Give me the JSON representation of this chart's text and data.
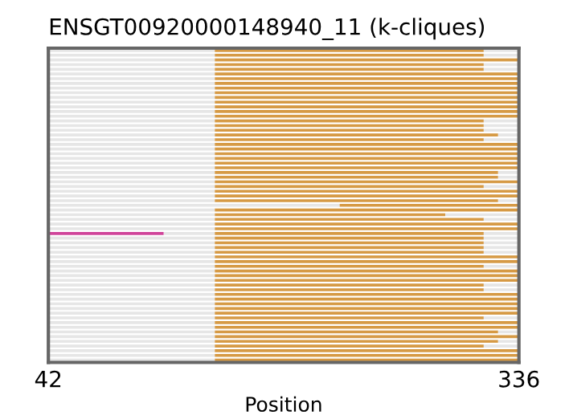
{
  "chart_data": {
    "type": "bar",
    "orientation": "horizontal",
    "title": "ENSGT00920000148940_11 (k-cliques)",
    "xlabel": "Position",
    "categories": [
      null,
      null,
      null,
      null,
      null,
      null,
      null,
      null,
      null,
      null,
      null,
      null,
      null,
      null,
      null,
      null,
      null,
      null,
      null,
      null,
      null,
      null,
      null,
      null,
      null,
      null,
      null,
      null,
      null,
      null,
      null,
      null,
      null,
      null,
      null,
      null,
      null,
      null,
      null,
      null,
      null,
      null,
      null,
      null,
      null,
      null,
      null,
      null,
      null,
      null,
      null,
      null,
      null,
      null,
      null,
      null,
      null,
      null,
      null,
      null,
      null,
      null,
      null,
      null,
      null,
      null,
      null
    ],
    "xlim": [
      42,
      336
    ],
    "xticks": [
      42,
      336
    ],
    "tick_labels": "x",
    "grid": false,
    "legend": false,
    "series": [
      {
        "color": "#e6e6e6",
        "base": [
          42,
          42,
          42,
          42,
          42,
          42,
          42,
          42,
          42,
          42,
          42,
          42,
          42,
          42,
          42,
          42,
          42,
          42,
          42,
          42,
          42,
          42,
          42,
          42,
          42,
          42,
          42,
          42,
          42,
          42,
          42,
          42,
          42,
          42,
          42,
          42,
          42,
          42,
          42,
          114,
          42,
          42,
          42,
          42,
          42,
          42,
          42,
          42,
          42,
          42,
          42,
          42,
          42,
          42,
          42,
          42,
          42,
          42,
          42,
          42,
          42,
          42,
          42,
          42,
          42,
          42,
          42
        ],
        "values": [
          104,
          104,
          104,
          104,
          104,
          104,
          104,
          104,
          104,
          104,
          104,
          104,
          104,
          104,
          104,
          104,
          104,
          104,
          104,
          104,
          104,
          104,
          104,
          104,
          104,
          104,
          104,
          104,
          104,
          104,
          104,
          104,
          104,
          182,
          104,
          104,
          104,
          104,
          104,
          32,
          104,
          104,
          104,
          104,
          104,
          104,
          104,
          104,
          104,
          104,
          104,
          104,
          104,
          104,
          104,
          104,
          104,
          104,
          104,
          104,
          104,
          104,
          104,
          104,
          104,
          104,
          104
        ]
      },
      {
        "color": "#d69a45",
        "base": [
          146,
          146,
          146,
          146,
          146,
          146,
          146,
          146,
          146,
          146,
          146,
          146,
          146,
          146,
          146,
          146,
          146,
          146,
          146,
          146,
          146,
          146,
          146,
          146,
          146,
          146,
          146,
          146,
          146,
          146,
          146,
          146,
          146,
          224,
          146,
          146,
          146,
          146,
          146,
          146,
          146,
          146,
          146,
          146,
          146,
          146,
          146,
          146,
          146,
          146,
          146,
          146,
          146,
          146,
          146,
          146,
          146,
          146,
          146,
          146,
          146,
          146,
          146,
          146,
          146,
          146,
          146
        ],
        "values": [
          168,
          168,
          190,
          168,
          168,
          190,
          190,
          190,
          190,
          190,
          190,
          190,
          190,
          190,
          190,
          168,
          168,
          168,
          177,
          168,
          190,
          190,
          190,
          190,
          190,
          190,
          177,
          177,
          190,
          168,
          190,
          190,
          177,
          112,
          190,
          144,
          168,
          190,
          190,
          168,
          168,
          168,
          168,
          168,
          190,
          190,
          168,
          190,
          190,
          190,
          168,
          168,
          190,
          190,
          190,
          190,
          190,
          168,
          190,
          190,
          177,
          190,
          177,
          168,
          190,
          190,
          190
        ]
      },
      {
        "color": "#e6e6e6",
        "base": [
          314,
          314,
          null,
          314,
          314,
          null,
          null,
          null,
          null,
          null,
          null,
          null,
          null,
          null,
          null,
          314,
          314,
          314,
          323,
          314,
          null,
          null,
          null,
          null,
          null,
          null,
          323,
          323,
          null,
          314,
          null,
          null,
          323,
          null,
          null,
          290,
          314,
          null,
          null,
          314,
          314,
          314,
          314,
          314,
          null,
          null,
          314,
          null,
          null,
          null,
          314,
          314,
          null,
          null,
          null,
          null,
          null,
          314,
          null,
          null,
          323,
          null,
          323,
          314,
          null,
          null,
          null
        ],
        "values": [
          22,
          22,
          null,
          22,
          22,
          null,
          null,
          null,
          null,
          null,
          null,
          null,
          null,
          null,
          null,
          22,
          22,
          22,
          13,
          22,
          null,
          null,
          null,
          null,
          null,
          null,
          13,
          13,
          null,
          22,
          null,
          null,
          13,
          null,
          null,
          46,
          22,
          null,
          null,
          22,
          22,
          22,
          22,
          22,
          null,
          null,
          22,
          null,
          null,
          null,
          22,
          22,
          null,
          null,
          null,
          null,
          null,
          22,
          null,
          null,
          13,
          null,
          13,
          22,
          null,
          null,
          null
        ]
      },
      {
        "color": "#d0449a",
        "base": [
          null,
          null,
          null,
          null,
          null,
          null,
          null,
          null,
          null,
          null,
          null,
          null,
          null,
          null,
          null,
          null,
          null,
          null,
          null,
          null,
          null,
          null,
          null,
          null,
          null,
          null,
          null,
          null,
          null,
          null,
          null,
          null,
          null,
          null,
          null,
          null,
          null,
          null,
          null,
          42,
          null,
          null,
          null,
          null,
          null,
          null,
          null,
          null,
          null,
          null,
          null,
          null,
          null,
          null,
          null,
          null,
          null,
          null,
          null,
          null,
          null,
          null,
          null,
          null,
          null,
          null,
          null
        ],
        "values": [
          null,
          null,
          null,
          null,
          null,
          null,
          null,
          null,
          null,
          null,
          null,
          null,
          null,
          null,
          null,
          null,
          null,
          null,
          null,
          null,
          null,
          null,
          null,
          null,
          null,
          null,
          null,
          null,
          null,
          null,
          null,
          null,
          null,
          null,
          null,
          null,
          null,
          null,
          null,
          72,
          null,
          null,
          null,
          null,
          null,
          null,
          null,
          null,
          null,
          null,
          null,
          null,
          null,
          null,
          null,
          null,
          null,
          null,
          null,
          null,
          null,
          null,
          null,
          null,
          null,
          null,
          null
        ]
      }
    ]
  }
}
